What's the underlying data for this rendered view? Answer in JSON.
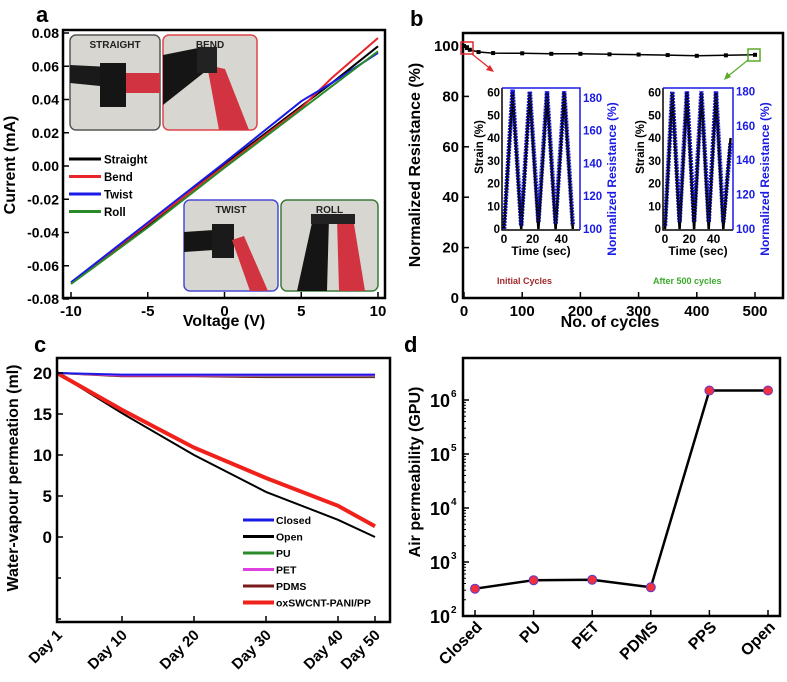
{
  "chart_data": [
    {
      "panel": "a",
      "type": "line",
      "xlabel": "Voltage (V)",
      "ylabel": "Current  (mA)",
      "xlim": [
        -10,
        10
      ],
      "ylim": [
        -0.08,
        0.08
      ],
      "x_ticks": [
        {
          "v": -10,
          "label": "-10"
        },
        {
          "v": -5,
          "label": "-5"
        },
        {
          "v": 0,
          "label": "0"
        },
        {
          "v": 5,
          "label": "5"
        },
        {
          "v": 10,
          "label": "10"
        }
      ],
      "y_ticks": [
        {
          "v": 0.08,
          "label": "0.08"
        },
        {
          "v": 0.06,
          "label": "0.06"
        },
        {
          "v": 0.04,
          "label": "0.04"
        },
        {
          "v": 0.02,
          "label": "0.02"
        },
        {
          "v": 0,
          "label": "0.00"
        },
        {
          "v": -0.02,
          "label": "-0.02"
        },
        {
          "v": -0.04,
          "label": "-0.04"
        },
        {
          "v": -0.06,
          "label": "-0.06"
        },
        {
          "v": -0.08,
          "label": "-0.08"
        }
      ],
      "legend": "left",
      "series": [
        {
          "name": "Straight",
          "color": "#000000",
          "x": [
            -10,
            -5,
            0,
            5,
            7,
            10
          ],
          "y": [
            -0.07,
            -0.036,
            0.001,
            0.036,
            0.05,
            0.072
          ]
        },
        {
          "name": "Bend",
          "color": "#e8262a",
          "x": [
            -10,
            -5,
            0,
            5,
            7,
            10
          ],
          "y": [
            -0.07,
            -0.035,
            0.0,
            0.035,
            0.053,
            0.077
          ]
        },
        {
          "name": "Twist",
          "color": "#1a1ae6",
          "x": [
            -10,
            -5,
            0,
            5,
            7,
            10
          ],
          "y": [
            -0.07,
            -0.034,
            0.002,
            0.039,
            0.05,
            0.068
          ]
        },
        {
          "name": "Roll",
          "color": "#2a8a2a",
          "x": [
            -10,
            -5,
            0,
            5,
            7,
            10
          ],
          "y": [
            -0.071,
            -0.037,
            -0.001,
            0.034,
            0.048,
            0.069
          ]
        }
      ],
      "insets": [
        {
          "label": "STRAIGHT",
          "border": "#555555"
        },
        {
          "label": "BEND",
          "border": "#e0454a"
        },
        {
          "label": "TWIST",
          "border": "#4a4ad6"
        },
        {
          "label": "ROLL",
          "border": "#3a7a3a"
        }
      ]
    },
    {
      "panel": "b",
      "type": "line",
      "xlabel": "No. of cycles",
      "ylabel": "Normalized Resistance (%)",
      "xlim": [
        0,
        550
      ],
      "ylim": [
        0,
        105
      ],
      "x_ticks": [
        {
          "v": 0,
          "label": "0"
        },
        {
          "v": 100,
          "label": "100"
        },
        {
          "v": 200,
          "label": "200"
        },
        {
          "v": 300,
          "label": "300"
        },
        {
          "v": 400,
          "label": "400"
        },
        {
          "v": 500,
          "label": "500"
        }
      ],
      "y_ticks": [
        {
          "v": 0,
          "label": "0"
        },
        {
          "v": 20,
          "label": "20"
        },
        {
          "v": 40,
          "label": "40"
        },
        {
          "v": 60,
          "label": "60"
        },
        {
          "v": 80,
          "label": "80"
        },
        {
          "v": 100,
          "label": "100"
        }
      ],
      "series": [
        {
          "name": "Normalized Resistance",
          "color": "#000000",
          "x": [
            0,
            5,
            10,
            25,
            50,
            100,
            150,
            200,
            250,
            300,
            350,
            400,
            450,
            500
          ],
          "y": [
            100,
            99.2,
            98.5,
            97.6,
            97.2,
            97.1,
            96.9,
            96.9,
            96.7,
            96.6,
            96.4,
            96.1,
            96.3,
            96.5
          ]
        }
      ],
      "annotations": [
        {
          "text": "Initial Cycles",
          "color": "#a0282a"
        },
        {
          "text": "After 500 cycles",
          "color": "#3aaa2a"
        }
      ],
      "highlight_colors": {
        "initial": "#e0282a",
        "after": "#5aaa2a"
      },
      "insets": [
        {
          "xlabel": "Time (sec)",
          "ylabel_left": "Strain (%)",
          "ylabel_right": "Normalized Resistance (%)",
          "xlim": [
            0,
            53
          ],
          "ylim_left": [
            0,
            62
          ],
          "ylim_right": [
            100,
            186
          ],
          "x_ticks": [
            {
              "v": 0,
              "label": "0"
            },
            {
              "v": 20,
              "label": "20"
            },
            {
              "v": 40,
              "label": "40"
            }
          ],
          "y_ticks_left": [
            {
              "v": 0,
              "label": "0"
            },
            {
              "v": 10,
              "label": "10"
            },
            {
              "v": 20,
              "label": "20"
            },
            {
              "v": 30,
              "label": "30"
            },
            {
              "v": 40,
              "label": "40"
            },
            {
              "v": 50,
              "label": "50"
            },
            {
              "v": 60,
              "label": "60"
            }
          ],
          "y_ticks_right": [
            {
              "v": 100,
              "label": "100"
            },
            {
              "v": 120,
              "label": "120"
            },
            {
              "v": 140,
              "label": "140"
            },
            {
              "v": 160,
              "label": "160"
            },
            {
              "v": 180,
              "label": "180"
            }
          ],
          "strain": {
            "color": "#000000",
            "t": [
              0,
              6,
              12,
              18,
              24,
              30,
              36,
              42,
              48
            ],
            "v": [
              0,
              60,
              0,
              60,
              0,
              60,
              0,
              60,
              0
            ]
          },
          "resistance": {
            "color": "#1a1ae6",
            "t": [
              0,
              6,
              12,
              18,
              24,
              30,
              36,
              42,
              48
            ],
            "v": [
              100,
              185,
              102,
              184,
              104,
              184,
              103,
              184,
              102
            ]
          }
        },
        {
          "xlabel": "Time (sec)",
          "ylabel_left": "Strain (%)",
          "ylabel_right": "Normalized Resistance (%)",
          "xlim": [
            0,
            56
          ],
          "ylim_left": [
            0,
            62
          ],
          "ylim_right": [
            100,
            182
          ],
          "x_ticks": [
            {
              "v": 0,
              "label": "0"
            },
            {
              "v": 20,
              "label": "20"
            },
            {
              "v": 40,
              "label": "40"
            }
          ],
          "y_ticks_left": [
            {
              "v": 0,
              "label": "0"
            },
            {
              "v": 10,
              "label": "10"
            },
            {
              "v": 20,
              "label": "20"
            },
            {
              "v": 30,
              "label": "30"
            },
            {
              "v": 40,
              "label": "40"
            },
            {
              "v": 50,
              "label": "50"
            },
            {
              "v": 60,
              "label": "60"
            }
          ],
          "y_ticks_right": [
            {
              "v": 100,
              "label": "100"
            },
            {
              "v": 120,
              "label": "120"
            },
            {
              "v": 140,
              "label": "140"
            },
            {
              "v": 160,
              "label": "160"
            },
            {
              "v": 180,
              "label": "180"
            }
          ],
          "strain": {
            "color": "#000000",
            "t": [
              0,
              6,
              12,
              18,
              24,
              30,
              36,
              42,
              48,
              54
            ],
            "v": [
              0,
              60,
              0,
              60,
              0,
              60,
              0,
              60,
              0,
              40
            ]
          },
          "resistance": {
            "color": "#1a1ae6",
            "t": [
              0,
              6,
              12,
              18,
              24,
              30,
              36,
              42,
              48,
              54
            ],
            "v": [
              102,
              180,
              104,
              180,
              104,
              180,
              104,
              180,
              104,
              150
            ]
          }
        }
      ]
    },
    {
      "panel": "c",
      "type": "line",
      "xlabel": "",
      "ylabel": "Water-vapour permeation (ml)",
      "ylim": [
        -10.6,
        22
      ],
      "x_ticks": [
        {
          "v": 1,
          "label": "Day 1"
        },
        {
          "v": 10,
          "label": "Day 10"
        },
        {
          "v": 20,
          "label": "Day 20"
        },
        {
          "v": 30,
          "label": "Day 30"
        },
        {
          "v": 40,
          "label": "Day 40"
        },
        {
          "v": 50,
          "label": "Day 50"
        }
      ],
      "y_ticks": [
        {
          "v": 0,
          "label": "0"
        },
        {
          "v": 5,
          "label": "5"
        },
        {
          "v": 10,
          "label": "10"
        },
        {
          "v": 15,
          "label": "15"
        },
        {
          "v": 20,
          "label": "20"
        }
      ],
      "legend": "bottom-right",
      "series": [
        {
          "name": "Closed",
          "color": "#1a1ae6",
          "x": [
            1,
            10,
            20,
            30,
            40,
            50
          ],
          "y": [
            20,
            19.8,
            19.8,
            19.8,
            19.8,
            19.8
          ]
        },
        {
          "name": "Open",
          "color": "#000000",
          "x": [
            1,
            10,
            20,
            30,
            40,
            50
          ],
          "y": [
            20,
            15.1,
            10.0,
            5.5,
            2.1,
            0
          ]
        },
        {
          "name": "PU",
          "color": "#2a8a2a",
          "x": [
            1,
            10,
            20,
            30,
            40,
            50
          ],
          "y": [
            20,
            19.7,
            19.7,
            19.6,
            19.6,
            19.6
          ]
        },
        {
          "name": "PET",
          "color": "#e040e0",
          "x": [
            1,
            10,
            20,
            30,
            40,
            50
          ],
          "y": [
            20,
            19.7,
            19.7,
            19.7,
            19.7,
            19.7
          ]
        },
        {
          "name": "PDMS",
          "color": "#7a1a1a",
          "x": [
            1,
            10,
            20,
            30,
            40,
            50
          ],
          "y": [
            20,
            19.6,
            19.6,
            19.5,
            19.5,
            19.5
          ]
        },
        {
          "name": "oxSWCNT-PANI/PP",
          "color": "#f0201a",
          "x": [
            1,
            10,
            20,
            30,
            40,
            50
          ],
          "y": [
            20,
            15.5,
            10.9,
            7.2,
            3.8,
            1.3
          ]
        }
      ]
    },
    {
      "panel": "d",
      "type": "line",
      "xlabel": "",
      "ylabel": "Air permeability (GPU)",
      "yscale": "log",
      "ylim": [
        100,
        6000000
      ],
      "categories": [
        "Closed",
        "PU",
        "PET",
        "PDMS",
        "PPS",
        "Open"
      ],
      "values": [
        320,
        460,
        470,
        340,
        1500000,
        1500000
      ],
      "y_ticks": [
        {
          "v": 100,
          "base": "10",
          "exp": "2"
        },
        {
          "v": 1000,
          "base": "10",
          "exp": "3"
        },
        {
          "v": 10000,
          "base": "10",
          "exp": "4"
        },
        {
          "v": 100000,
          "base": "10",
          "exp": "5"
        },
        {
          "v": 1000000,
          "base": "10",
          "exp": "6"
        }
      ],
      "line_color": "#000000",
      "marker_color": "#f0303a",
      "marker_edge": "#5a3ad6"
    }
  ],
  "panel_labels": [
    "a",
    "b",
    "c",
    "d"
  ]
}
